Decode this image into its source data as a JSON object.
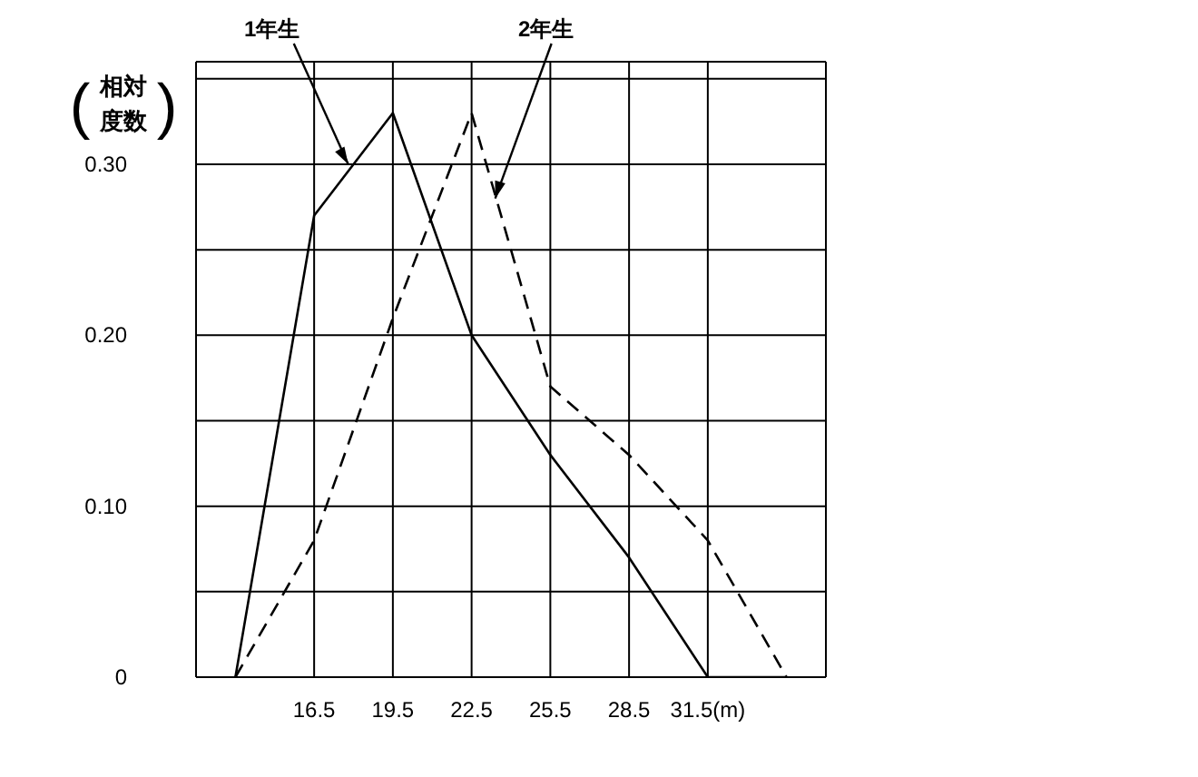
{
  "chart_data": {
    "type": "line",
    "ylabel": "(相対度数)",
    "x": [
      13.5,
      16.5,
      19.5,
      22.5,
      25.5,
      28.5,
      31.5,
      34.5
    ],
    "series": [
      {
        "color": "#000000",
        "line_style": "solid",
        "values": [
          0,
          0.27,
          0.33,
          0.2,
          0.13,
          0.07,
          0,
          0
        ]
      },
      {
        "color": "#000000",
        "line_style": "dashed",
        "values": [
          0,
          0.08,
          0.21,
          0.33,
          0.17,
          0.13,
          0.08,
          0
        ]
      }
    ],
    "annotations": [
      {
        "text": "1年生",
        "x": 17.8,
        "y": 0.3
      },
      {
        "text": "2年生",
        "x": 23.4,
        "y": 0.28
      }
    ],
    "xlim": [
      12,
      36
    ],
    "xticks": [
      16.5,
      19.5,
      22.5,
      25.5,
      28.5,
      {
        "value": 31.5,
        "label": "31.5(m)"
      }
    ],
    "ylim": [
      0,
      0.36
    ],
    "yticks": [
      {
        "value": 0,
        "label": "0"
      },
      {
        "value": 0.05,
        "label": null
      },
      {
        "value": 0.1,
        "label": "0.10"
      },
      {
        "value": 0.15,
        "label": null
      },
      {
        "value": 0.2,
        "label": "0.20"
      },
      {
        "value": 0.25,
        "label": null
      },
      {
        "value": 0.3,
        "label": "0.30"
      },
      {
        "value": 0.35,
        "label": null
      }
    ],
    "grid": true,
    "legend": false,
    "marker": "none"
  }
}
